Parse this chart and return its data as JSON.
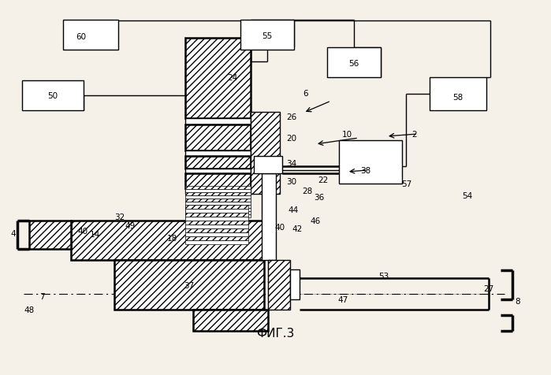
{
  "title": "ФИГ.3",
  "bg_color": "#f5f0e8",
  "fig_width": 6.99,
  "fig_height": 4.77
}
